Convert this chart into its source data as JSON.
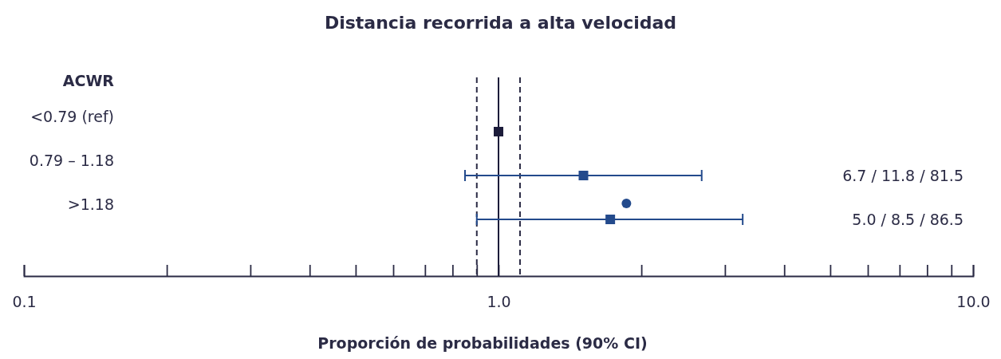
{
  "chart_data": {
    "type": "scatter",
    "orientation": "horizontal",
    "title": "Distancia recorrida a alta velocidad",
    "xlabel": "Proporción de probabilidades (90% CI)",
    "ylabel": "ACWR",
    "categories": [
      "<0.79 (ref)",
      "0.79 – 1.18",
      ">1.18"
    ],
    "log": "x",
    "xlim": [
      0.1,
      10
    ],
    "xticks": [
      0.1,
      {
        "value": 0.2,
        "label": null
      },
      {
        "value": 0.3,
        "label": null
      },
      {
        "value": 0.4,
        "label": null
      },
      {
        "value": 0.5,
        "label": null
      },
      {
        "value": 0.6,
        "label": null
      },
      {
        "value": 0.7,
        "label": null
      },
      {
        "value": 0.8,
        "label": null
      },
      {
        "value": 0.9,
        "label": null
      },
      {
        "value": 1,
        "label": "1.0"
      },
      {
        "value": 2,
        "label": null
      },
      {
        "value": 3,
        "label": null
      },
      {
        "value": 4,
        "label": null
      },
      {
        "value": 5,
        "label": null
      },
      {
        "value": 6,
        "label": null
      },
      {
        "value": 7,
        "label": null
      },
      {
        "value": 8,
        "label": null
      },
      {
        "value": 9,
        "label": null
      },
      {
        "value": 10,
        "label": "10.0"
      }
    ],
    "grid": false,
    "annotations": [
      "6.7 / 11.8 / 81.5",
      "5.0 / 8.5 / 86.5"
    ],
    "series": [
      {
        "marker": "square",
        "colors": [
          "#1c1c3a",
          "#234a8c",
          "#234a8c"
        ],
        "values": [
          1.0,
          1.51,
          1.72
        ],
        "errors": [
          null,
          [
            0.85,
            2.68
          ],
          [
            0.9,
            3.27
          ]
        ]
      },
      {
        "marker": "circle",
        "color": "#234a8c",
        "values": [
          null,
          null,
          1.86
        ]
      }
    ],
    "ref_lines": [
      {
        "axis": "x",
        "value": 1,
        "color": "#1c1c3a",
        "line_style": "solid"
      },
      {
        "axis": "x",
        "value": 0.9,
        "color": "#2b2b45",
        "line_style": "dashed"
      },
      {
        "axis": "x",
        "value": 1.11,
        "color": "#2b2b45",
        "line_style": "dashed"
      }
    ]
  }
}
